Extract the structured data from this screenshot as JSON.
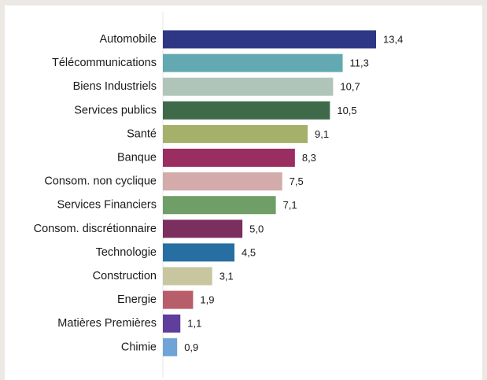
{
  "chart_data": {
    "type": "bar",
    "orientation": "horizontal",
    "title": "",
    "xlabel": "",
    "ylabel": "",
    "xlim": [
      0,
      13.4
    ],
    "grid": false,
    "legend": "none",
    "decimal_separator": ",",
    "categories": [
      "Automobile",
      "Télécommunications",
      "Biens Industriels",
      "Services publics",
      "Santé",
      "Banque",
      "Consom. non cyclique",
      "Services Financiers",
      "Consom. discrétionnaire",
      "Technologie",
      "Construction",
      "Energie",
      "Matières Premières",
      "Chimie"
    ],
    "values": [
      13.4,
      11.3,
      10.7,
      10.5,
      9.1,
      8.3,
      7.5,
      7.1,
      5.0,
      4.5,
      3.1,
      1.9,
      1.1,
      0.9
    ],
    "value_labels": [
      "13,4",
      "11,3",
      "10,7",
      "10,5",
      "9,1",
      "8,3",
      "7,5",
      "7,1",
      "5,0",
      "4,5",
      "3,1",
      "1,9",
      "1,1",
      "0,9"
    ],
    "colors": [
      "#2e3785",
      "#63a9b1",
      "#afc5ba",
      "#3e6a4a",
      "#a5b16b",
      "#9a2e61",
      "#d3abab",
      "#6f9e67",
      "#7b2f5e",
      "#276fa3",
      "#c7c69f",
      "#b85e6a",
      "#5f3f9b",
      "#6ea5d6"
    ]
  }
}
